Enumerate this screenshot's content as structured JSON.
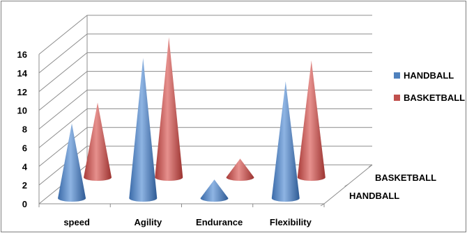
{
  "chart_data": {
    "type": "bar",
    "shape": "3d-cone",
    "categories": [
      "speed",
      "Agility",
      "Endurance",
      "Flexibility"
    ],
    "series": [
      {
        "name": "HANDBALL",
        "values": [
          8,
          15,
          2,
          12.5
        ],
        "color": "#4f81bd"
      },
      {
        "name": "BASKETBALL",
        "values": [
          8,
          15,
          2,
          12.5
        ],
        "color": "#c0504d"
      }
    ],
    "depth_labels": [
      "BASKETBALL",
      "HANDBALL"
    ],
    "ylim": [
      0,
      16
    ],
    "yticks": [
      0,
      2,
      4,
      6,
      8,
      10,
      12,
      14,
      16
    ],
    "grid": true,
    "legend": "right",
    "title": "",
    "xlabel": "",
    "ylabel": ""
  }
}
